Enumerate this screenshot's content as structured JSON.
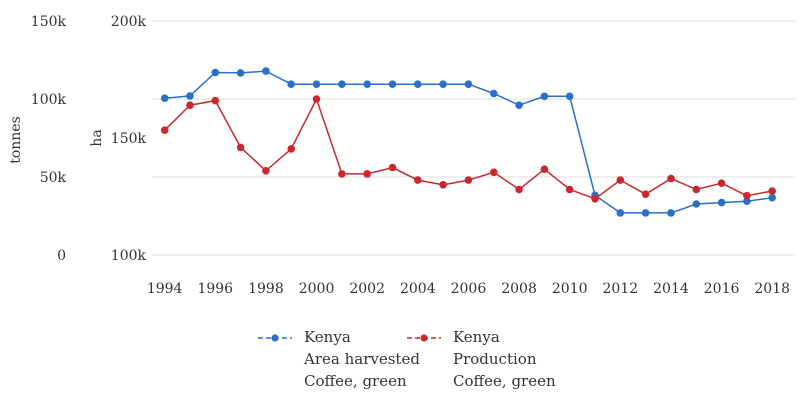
{
  "chart_data": {
    "type": "line",
    "x": [
      1994,
      1995,
      1996,
      1997,
      1998,
      1999,
      2000,
      2001,
      2002,
      2003,
      2004,
      2005,
      2006,
      2007,
      2008,
      2009,
      2010,
      2011,
      2012,
      2013,
      2014,
      2015,
      2016,
      2017,
      2018
    ],
    "x_tick_labels": [
      "1994",
      "1996",
      "1998",
      "2000",
      "2002",
      "2004",
      "2006",
      "2008",
      "2010",
      "2012",
      "2014",
      "2016",
      "2018"
    ],
    "axes": {
      "left_outer": {
        "label": "tonnes",
        "ticks": [
          "150k",
          "100k",
          "50k",
          "0"
        ],
        "range": [
          0,
          150000
        ]
      },
      "left_inner": {
        "label": "ha",
        "ticks": [
          "200k",
          "150k",
          "100k"
        ],
        "range": [
          100000,
          200000
        ]
      }
    },
    "grid": true,
    "series": [
      {
        "name": "Kenya Area harvested Coffee, green",
        "legend_lines": [
          "Kenya",
          "Area harvested",
          "Coffee, green"
        ],
        "axis": "ha",
        "color": "#2a6fc9",
        "values": [
          167000,
          168000,
          178000,
          177800,
          178600,
          173000,
          173000,
          173000,
          173000,
          173000,
          173000,
          173000,
          173000,
          169000,
          164000,
          167800,
          167800,
          125500,
          118000,
          118000,
          118000,
          121800,
          122400,
          123000,
          124500
        ]
      },
      {
        "name": "Kenya Production Coffee, green",
        "legend_lines": [
          "Kenya",
          "Production",
          "Coffee, green"
        ],
        "axis": "tonnes",
        "color": "#c8282e",
        "values": [
          80000,
          96000,
          99000,
          69000,
          54000,
          68000,
          100000,
          52000,
          52000,
          56000,
          48000,
          45000,
          48000,
          53000,
          42000,
          55000,
          42000,
          36000,
          48000,
          39000,
          49000,
          42000,
          46000,
          38000,
          41000
        ]
      }
    ]
  }
}
